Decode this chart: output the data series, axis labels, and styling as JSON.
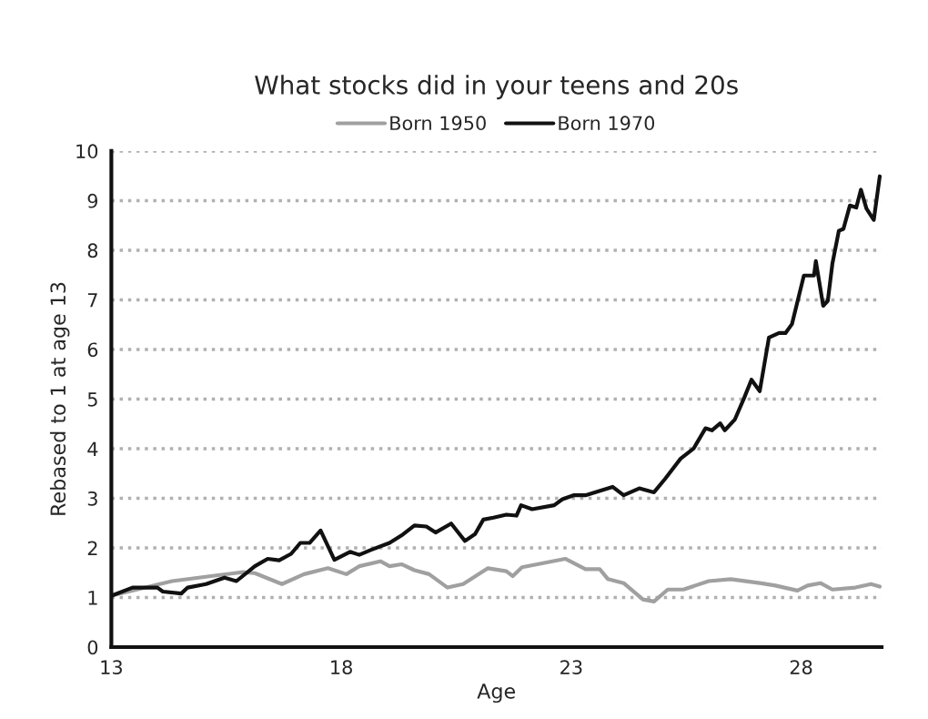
{
  "chart_data": {
    "type": "line",
    "title": "What stocks did in your teens and 20s",
    "xlabel": "Age",
    "ylabel": "Rebased to 1 at age 13",
    "xlim": [
      13,
      29.75
    ],
    "xticks": [
      13,
      18,
      23,
      28
    ],
    "ylim": [
      0,
      10
    ],
    "yticks": [
      0,
      1,
      2,
      3,
      4,
      5,
      6,
      7,
      8,
      9,
      10
    ],
    "grid": "y",
    "legend": "top",
    "line_style": "solid",
    "series": [
      {
        "name": "Born 1950",
        "color": "#a0a0a0",
        "x": [
          13.02,
          14.32,
          15.32,
          15.86,
          16.12,
          16.71,
          17.19,
          17.71,
          18.11,
          18.39,
          18.85,
          19.05,
          19.31,
          19.59,
          19.91,
          20.31,
          20.65,
          21.19,
          21.59,
          21.73,
          21.93,
          22.49,
          22.87,
          23.31,
          23.62,
          23.8,
          24.14,
          24.56,
          24.8,
          25.1,
          25.44,
          25.99,
          26.47,
          27.1,
          27.44,
          27.92,
          28.14,
          28.42,
          28.68,
          29.18,
          29.52,
          29.71
        ],
        "values": [
          1.04,
          1.33,
          1.45,
          1.51,
          1.49,
          1.27,
          1.47,
          1.59,
          1.47,
          1.63,
          1.73,
          1.63,
          1.67,
          1.55,
          1.47,
          1.2,
          1.27,
          1.59,
          1.53,
          1.43,
          1.61,
          1.71,
          1.78,
          1.57,
          1.57,
          1.37,
          1.29,
          0.96,
          0.92,
          1.16,
          1.16,
          1.33,
          1.37,
          1.29,
          1.24,
          1.14,
          1.24,
          1.29,
          1.16,
          1.2,
          1.27,
          1.22
        ]
      },
      {
        "name": "Born 1970",
        "color": "#111111",
        "x": [
          13.02,
          13.46,
          14.0,
          14.12,
          14.52,
          14.66,
          15.06,
          15.46,
          15.72,
          16.12,
          16.4,
          16.65,
          16.91,
          17.11,
          17.31,
          17.55,
          17.85,
          18.19,
          18.39,
          18.65,
          19.05,
          19.31,
          19.59,
          19.85,
          20.05,
          20.39,
          20.69,
          20.91,
          21.09,
          21.31,
          21.59,
          21.81,
          21.91,
          22.15,
          22.63,
          22.81,
          23.05,
          23.31,
          23.66,
          23.9,
          24.14,
          24.48,
          24.8,
          25.04,
          25.38,
          25.66,
          25.92,
          26.06,
          26.24,
          26.34,
          26.56,
          26.76,
          26.92,
          27.1,
          27.3,
          27.52,
          27.66,
          27.8,
          28.06,
          28.28,
          28.32,
          28.48,
          28.58,
          28.68,
          28.82,
          28.92,
          29.06,
          29.2,
          29.3,
          29.42,
          29.58,
          29.71
        ],
        "values": [
          1.04,
          1.2,
          1.2,
          1.12,
          1.08,
          1.2,
          1.27,
          1.4,
          1.33,
          1.63,
          1.78,
          1.75,
          1.88,
          2.1,
          2.1,
          2.35,
          1.76,
          1.92,
          1.86,
          1.96,
          2.1,
          2.25,
          2.45,
          2.43,
          2.31,
          2.49,
          2.14,
          2.28,
          2.57,
          2.61,
          2.67,
          2.65,
          2.86,
          2.78,
          2.86,
          2.98,
          3.06,
          3.06,
          3.16,
          3.23,
          3.06,
          3.2,
          3.12,
          3.39,
          3.8,
          4.0,
          4.41,
          4.37,
          4.51,
          4.37,
          4.59,
          5.02,
          5.39,
          5.16,
          6.24,
          6.33,
          6.33,
          6.51,
          7.49,
          7.49,
          7.78,
          6.88,
          6.98,
          7.73,
          8.39,
          8.43,
          8.9,
          8.86,
          9.22,
          8.84,
          8.61,
          9.49
        ]
      }
    ]
  }
}
